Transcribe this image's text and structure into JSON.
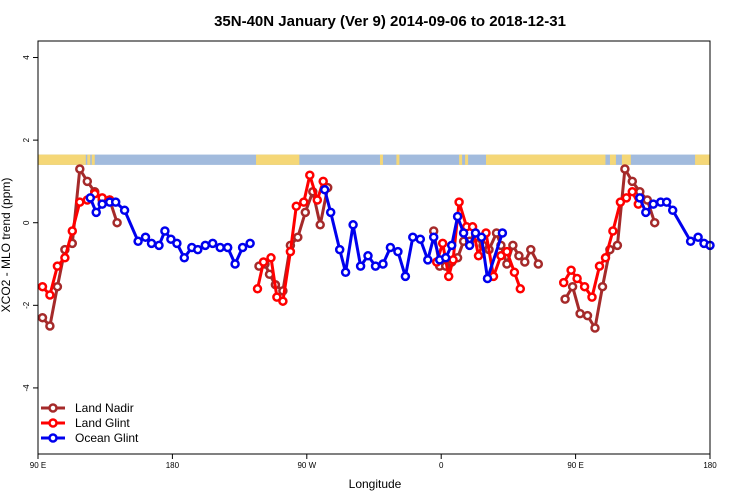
{
  "chart_data": {
    "type": "line",
    "title": "35N-40N January (Ver 9)   2014-09-06 to 2018-12-31",
    "xlabel": "Longitude",
    "ylabel": "XCO2 - MLO trend (ppm)",
    "xlim": [
      90,
      540
    ],
    "ylim": [
      -5.6,
      4.4
    ],
    "x_ticks": [
      {
        "value": 90,
        "label": "90 E"
      },
      {
        "value": 180,
        "label": "180"
      },
      {
        "value": 270,
        "label": "90 W"
      },
      {
        "value": 360,
        "label": "0"
      },
      {
        "value": 450,
        "label": "90 E"
      },
      {
        "value": 540,
        "label": "180"
      }
    ],
    "y_ticks": [
      {
        "value": -4,
        "label": "-4"
      },
      {
        "value": -2,
        "label": "-2"
      },
      {
        "value": 0,
        "label": "0"
      },
      {
        "value": 2,
        "label": "2"
      },
      {
        "value": 4,
        "label": "4"
      }
    ],
    "legend_position": "bottom-left",
    "land_band": {
      "y_range": [
        1.4,
        1.65
      ],
      "ocean_color": "#a2bbdd",
      "land_color": "#f5d777",
      "land_segments": [
        [
          90,
          122
        ],
        [
          123,
          125
        ],
        [
          126,
          128
        ],
        [
          236,
          265
        ],
        [
          319,
          321
        ],
        [
          330,
          332
        ],
        [
          372,
          374
        ],
        [
          376,
          378
        ],
        [
          390,
          470
        ],
        [
          473,
          477
        ],
        [
          481,
          487
        ],
        [
          530,
          540
        ]
      ]
    },
    "series": [
      {
        "name": "Land Nadir",
        "color": "#a52a2a",
        "segments": [
          [
            [
              93,
              -2.3
            ],
            [
              98,
              -2.5
            ],
            [
              103,
              -1.55
            ],
            [
              108,
              -0.65
            ],
            [
              113,
              -0.5
            ],
            [
              118,
              1.3
            ],
            [
              123,
              1.0
            ],
            [
              128,
              0.75
            ],
            [
              133,
              0.55
            ],
            [
              138,
              0.55
            ],
            [
              143,
              0.0
            ]
          ],
          [
            [
              238,
              -1.05
            ],
            [
              242,
              -1.0
            ],
            [
              245,
              -1.25
            ],
            [
              249,
              -1.5
            ],
            [
              254,
              -1.65
            ],
            [
              259,
              -0.55
            ],
            [
              264,
              -0.35
            ],
            [
              269,
              0.25
            ],
            [
              274,
              0.75
            ],
            [
              279,
              -0.05
            ],
            [
              284,
              0.85
            ]
          ],
          [
            [
              355,
              -0.2
            ],
            [
              359,
              -1.05
            ],
            [
              363,
              -1.05
            ],
            [
              367,
              -0.95
            ],
            [
              371,
              -0.85
            ],
            [
              375,
              -0.45
            ],
            [
              379,
              -0.45
            ],
            [
              383,
              -0.35
            ],
            [
              388,
              -0.55
            ],
            [
              392,
              -0.65
            ],
            [
              397,
              -0.25
            ],
            [
              400,
              -0.55
            ],
            [
              404,
              -1.0
            ],
            [
              408,
              -0.55
            ],
            [
              412,
              -0.8
            ],
            [
              416,
              -0.95
            ],
            [
              420,
              -0.65
            ],
            [
              425,
              -1.0
            ]
          ],
          [
            [
              443,
              -1.85
            ],
            [
              448,
              -1.55
            ],
            [
              453,
              -2.2
            ],
            [
              458,
              -2.25
            ],
            [
              463,
              -2.55
            ],
            [
              468,
              -1.55
            ],
            [
              473,
              -0.65
            ],
            [
              478,
              -0.55
            ],
            [
              483,
              1.3
            ],
            [
              488,
              1.0
            ],
            [
              493,
              0.75
            ],
            [
              498,
              0.55
            ],
            [
              503,
              0.0
            ]
          ]
        ]
      },
      {
        "name": "Land Glint",
        "color": "#ff0000",
        "segments": [
          [
            [
              93,
              -1.55
            ],
            [
              98,
              -1.75
            ],
            [
              103,
              -1.05
            ],
            [
              108,
              -0.85
            ],
            [
              113,
              -0.2
            ],
            [
              118,
              0.5
            ],
            [
              123,
              0.55
            ],
            [
              128,
              0.7
            ],
            [
              133,
              0.6
            ],
            [
              138,
              0.55
            ]
          ],
          [
            [
              237,
              -1.6
            ],
            [
              241,
              -0.95
            ],
            [
              246,
              -0.85
            ],
            [
              250,
              -1.8
            ],
            [
              254,
              -1.9
            ],
            [
              259,
              -0.7
            ],
            [
              263,
              0.4
            ],
            [
              268,
              0.5
            ],
            [
              272,
              1.15
            ],
            [
              277,
              0.55
            ],
            [
              281,
              1.0
            ]
          ],
          [
            [
              357,
              -0.95
            ],
            [
              361,
              -0.5
            ],
            [
              365,
              -1.3
            ],
            [
              368,
              -0.9
            ],
            [
              372,
              0.5
            ],
            [
              377,
              -0.1
            ],
            [
              381,
              -0.1
            ],
            [
              385,
              -0.8
            ],
            [
              390,
              -0.25
            ],
            [
              395,
              -1.3
            ],
            [
              400,
              -0.8
            ],
            [
              404,
              -0.7
            ],
            [
              409,
              -1.2
            ],
            [
              413,
              -1.6
            ]
          ],
          [
            [
              442,
              -1.45
            ],
            [
              447,
              -1.15
            ],
            [
              451,
              -1.35
            ],
            [
              456,
              -1.55
            ],
            [
              461,
              -1.8
            ],
            [
              466,
              -1.05
            ],
            [
              470,
              -0.85
            ],
            [
              475,
              -0.2
            ],
            [
              480,
              0.5
            ],
            [
              484,
              0.6
            ],
            [
              488,
              0.75
            ],
            [
              492,
              0.45
            ]
          ]
        ]
      },
      {
        "name": "Ocean Glint",
        "color": "#0000ee",
        "segments": [
          [
            [
              125,
              0.6
            ],
            [
              129,
              0.25
            ],
            [
              133,
              0.45
            ],
            [
              138,
              0.5
            ],
            [
              142,
              0.5
            ],
            [
              148,
              0.3
            ],
            [
              157,
              -0.45
            ],
            [
              162,
              -0.35
            ],
            [
              166,
              -0.5
            ],
            [
              171,
              -0.55
            ],
            [
              175,
              -0.2
            ],
            [
              179,
              -0.4
            ],
            [
              183,
              -0.5
            ],
            [
              188,
              -0.85
            ],
            [
              193,
              -0.6
            ],
            [
              197,
              -0.65
            ],
            [
              202,
              -0.55
            ],
            [
              207,
              -0.5
            ],
            [
              212,
              -0.6
            ],
            [
              217,
              -0.6
            ],
            [
              222,
              -1.0
            ],
            [
              227,
              -0.6
            ],
            [
              232,
              -0.5
            ]
          ],
          [
            [
              282,
              0.8
            ],
            [
              286,
              0.25
            ],
            [
              292,
              -0.65
            ],
            [
              296,
              -1.2
            ],
            [
              301,
              -0.05
            ],
            [
              306,
              -1.05
            ],
            [
              311,
              -0.8
            ],
            [
              316,
              -1.05
            ],
            [
              321,
              -1.0
            ],
            [
              326,
              -0.6
            ],
            [
              331,
              -0.7
            ],
            [
              336,
              -1.3
            ],
            [
              341,
              -0.35
            ],
            [
              346,
              -0.4
            ],
            [
              351,
              -0.9
            ],
            [
              355,
              -0.35
            ],
            [
              359,
              -0.9
            ],
            [
              363,
              -0.85
            ],
            [
              367,
              -0.55
            ],
            [
              371,
              0.15
            ],
            [
              375,
              -0.25
            ],
            [
              379,
              -0.55
            ],
            [
              383,
              -0.25
            ],
            [
              387,
              -0.35
            ],
            [
              391,
              -1.35
            ],
            [
              401,
              -0.25
            ]
          ],
          [
            [
              493,
              0.6
            ],
            [
              497,
              0.25
            ],
            [
              502,
              0.45
            ],
            [
              507,
              0.5
            ],
            [
              511,
              0.5
            ],
            [
              515,
              0.3
            ],
            [
              527,
              -0.45
            ],
            [
              532,
              -0.35
            ],
            [
              536,
              -0.5
            ],
            [
              540,
              -0.55
            ]
          ]
        ]
      }
    ]
  }
}
